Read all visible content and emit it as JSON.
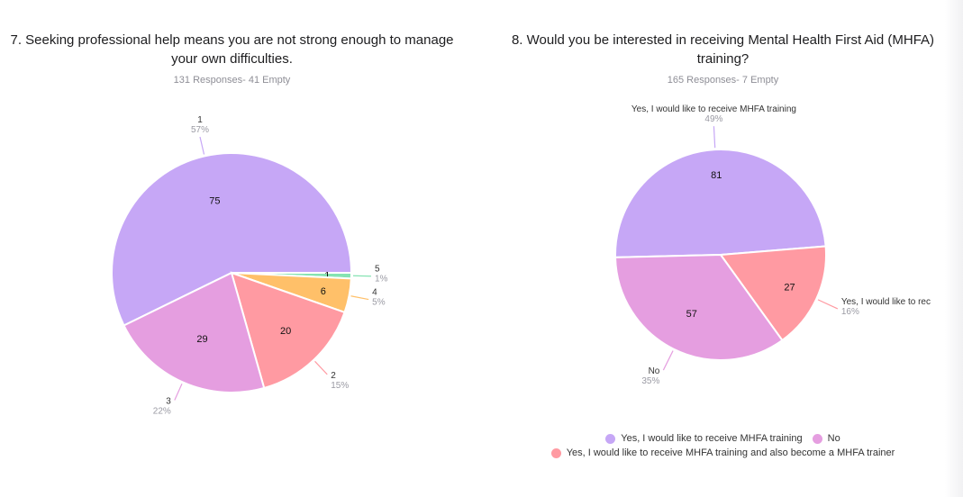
{
  "colors": {
    "purple": "#c6a7f6",
    "pink": "#e59ee0",
    "salmon": "#ff9aa2",
    "orange": "#ffc069",
    "green": "#86e3b3"
  },
  "chart_data": [
    {
      "type": "pie",
      "title": "7. Seeking professional help means you are not strong enough to manage your own difficulties.",
      "subtitle": "131 Responses- 41 Empty",
      "slices": [
        {
          "label": "1",
          "value": 75,
          "percent": "57%",
          "color": "#c6a7f6"
        },
        {
          "label": "5",
          "value": 1,
          "percent": "1%",
          "color": "#86e3b3"
        },
        {
          "label": "4",
          "value": 6,
          "percent": "5%",
          "color": "#ffc069"
        },
        {
          "label": "2",
          "value": 20,
          "percent": "15%",
          "color": "#ff9aa2"
        },
        {
          "label": "3",
          "value": 29,
          "percent": "22%",
          "color": "#e59ee0"
        }
      ]
    },
    {
      "type": "pie",
      "title": "8. Would you be interested in receiving Mental Health First Aid (MHFA) training?",
      "subtitle": "165 Responses- 7 Empty",
      "slices": [
        {
          "label": "Yes, I would like to receive MHFA training",
          "value": 81,
          "percent": "49%",
          "color": "#c6a7f6"
        },
        {
          "label": "Yes, I would like to receive MHFA training and also become a MHFA trainer",
          "value": 27,
          "percent": "16%",
          "color": "#ff9aa2"
        },
        {
          "label": "No",
          "value": 57,
          "percent": "35%",
          "color": "#e59ee0"
        }
      ],
      "callout_labels": [
        "Yes, I would like to receive MHFA training",
        "Yes, I would like to rec",
        "No"
      ],
      "legend": [
        {
          "label": "Yes, I would like to receive MHFA training",
          "color": "#c6a7f6"
        },
        {
          "label": "No",
          "color": "#e59ee0"
        },
        {
          "label": "Yes, I would like to receive MHFA training and also become a MHFA trainer",
          "color": "#ff9aa2"
        }
      ]
    }
  ]
}
